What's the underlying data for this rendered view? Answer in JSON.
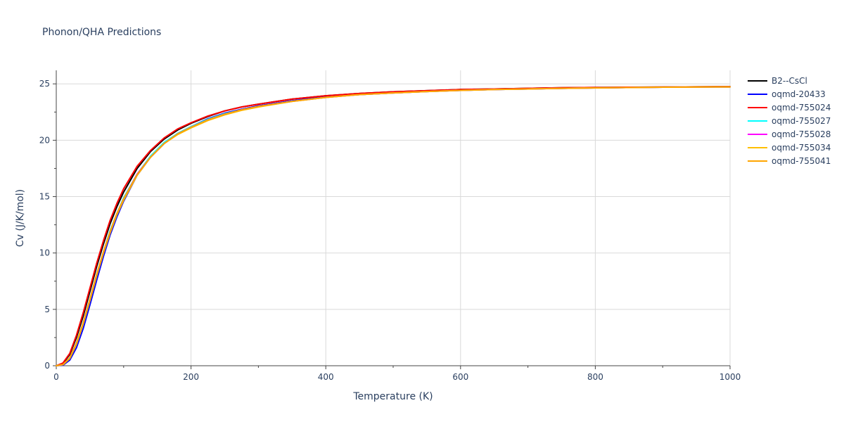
{
  "chart_data": {
    "type": "line",
    "title": "Phonon/QHA Predictions",
    "xlabel": "Temperature (K)",
    "ylabel": "Cv (J/K/mol)",
    "xlim": [
      0,
      1000
    ],
    "ylim": [
      0,
      26.2
    ],
    "x_ticks": [
      0,
      200,
      400,
      600,
      800,
      1000
    ],
    "y_ticks": [
      0,
      5,
      10,
      15,
      20,
      25
    ],
    "grid": true,
    "legend_position": "right",
    "x": [
      0,
      10,
      20,
      30,
      40,
      50,
      60,
      70,
      80,
      90,
      100,
      120,
      140,
      160,
      180,
      200,
      225,
      250,
      275,
      300,
      350,
      400,
      450,
      500,
      550,
      600,
      650,
      700,
      750,
      800,
      850,
      900,
      950,
      1000
    ],
    "series": [
      {
        "name": "B2--CsCl",
        "color": "#000000",
        "values": [
          0,
          0.2,
          1.0,
          2.5,
          4.4,
          6.6,
          8.8,
          10.8,
          12.6,
          14.1,
          15.4,
          17.5,
          19.0,
          20.1,
          20.9,
          21.5,
          22.1,
          22.6,
          22.95,
          23.2,
          23.65,
          23.95,
          24.15,
          24.3,
          24.4,
          24.5,
          24.55,
          24.6,
          24.65,
          24.68,
          24.7,
          24.72,
          24.74,
          24.75
        ]
      },
      {
        "name": "oqmd-20433",
        "color": "#0000ff",
        "values": [
          0,
          0.05,
          0.5,
          1.6,
          3.3,
          5.4,
          7.6,
          9.7,
          11.6,
          13.2,
          14.6,
          16.9,
          18.5,
          19.7,
          20.6,
          21.2,
          21.9,
          22.4,
          22.75,
          23.05,
          23.5,
          23.85,
          24.05,
          24.2,
          24.32,
          24.42,
          24.5,
          24.55,
          24.6,
          24.64,
          24.67,
          24.7,
          24.72,
          24.73
        ]
      },
      {
        "name": "oqmd-755024",
        "color": "#ff0000",
        "values": [
          0,
          0.25,
          1.1,
          2.7,
          4.7,
          6.9,
          9.1,
          11.1,
          12.9,
          14.4,
          15.7,
          17.7,
          19.1,
          20.2,
          21.0,
          21.55,
          22.15,
          22.6,
          22.95,
          23.2,
          23.65,
          23.95,
          24.15,
          24.3,
          24.4,
          24.5,
          24.55,
          24.6,
          24.65,
          24.68,
          24.7,
          24.72,
          24.74,
          24.75
        ]
      },
      {
        "name": "oqmd-755027",
        "color": "#00ffff",
        "values": [
          0,
          0.1,
          0.7,
          2.0,
          3.8,
          5.9,
          8.1,
          10.1,
          12.0,
          13.5,
          14.9,
          17.0,
          18.6,
          19.8,
          20.6,
          21.2,
          21.85,
          22.35,
          22.7,
          23.0,
          23.45,
          23.8,
          24.05,
          24.2,
          24.32,
          24.42,
          24.5,
          24.55,
          24.6,
          24.64,
          24.67,
          24.7,
          24.72,
          24.73
        ]
      },
      {
        "name": "oqmd-755028",
        "color": "#ff00ff",
        "values": [
          0,
          0.1,
          0.7,
          2.0,
          3.8,
          5.9,
          8.1,
          10.1,
          11.9,
          13.5,
          14.8,
          17.0,
          18.5,
          19.7,
          20.55,
          21.15,
          21.8,
          22.3,
          22.7,
          23.0,
          23.45,
          23.8,
          24.05,
          24.2,
          24.32,
          24.42,
          24.5,
          24.55,
          24.6,
          24.64,
          24.67,
          24.7,
          24.72,
          24.73
        ]
      },
      {
        "name": "oqmd-755034",
        "color": "#ffbf00",
        "values": [
          0,
          0.1,
          0.65,
          1.9,
          3.7,
          5.8,
          8.0,
          10.0,
          11.8,
          13.4,
          14.7,
          16.9,
          18.5,
          19.7,
          20.5,
          21.1,
          21.75,
          22.25,
          22.65,
          22.95,
          23.45,
          23.8,
          24.05,
          24.2,
          24.32,
          24.42,
          24.5,
          24.55,
          24.6,
          24.64,
          24.67,
          24.7,
          24.72,
          24.73
        ]
      },
      {
        "name": "oqmd-755041",
        "color": "#ffa500",
        "values": [
          0,
          0.1,
          0.7,
          2.0,
          3.8,
          5.9,
          8.1,
          10.1,
          11.9,
          13.5,
          14.8,
          16.95,
          18.5,
          19.7,
          20.55,
          21.15,
          21.8,
          22.3,
          22.7,
          23.0,
          23.45,
          23.8,
          24.05,
          24.2,
          24.32,
          24.42,
          24.5,
          24.55,
          24.6,
          24.64,
          24.67,
          24.7,
          24.72,
          24.73
        ]
      }
    ]
  }
}
